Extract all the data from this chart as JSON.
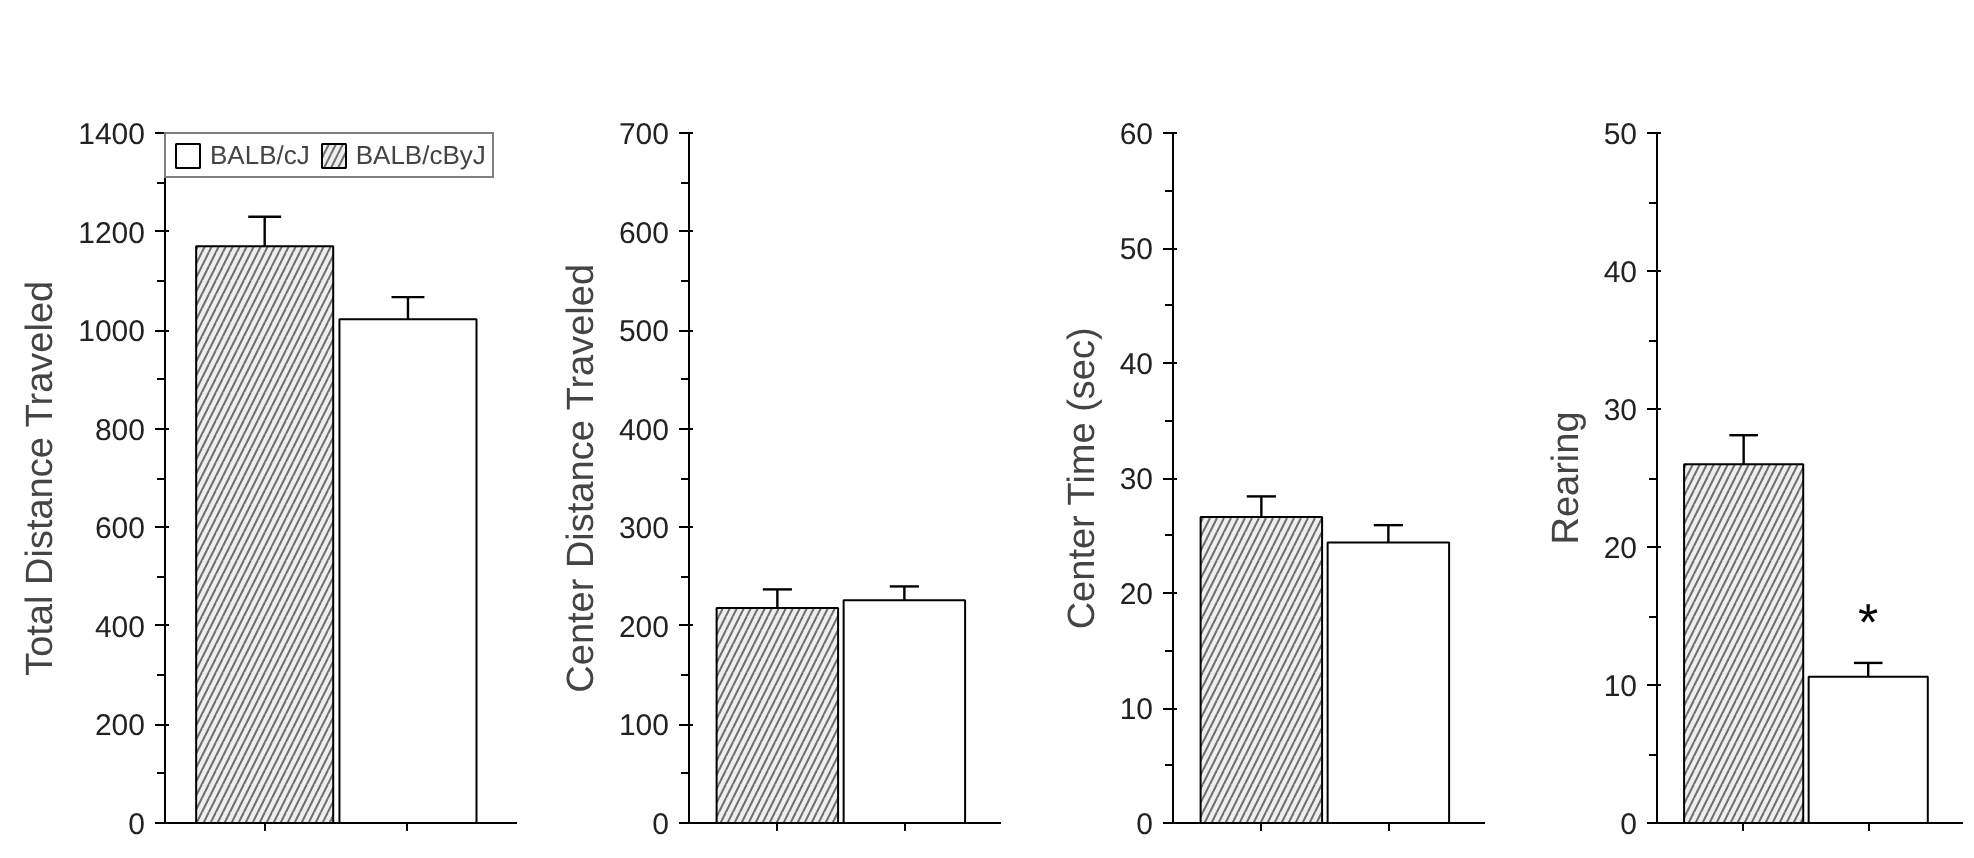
{
  "chart_data": [
    {
      "type": "bar",
      "categories": [
        null
      ],
      "ylabel": "Total Distance Traveled",
      "legend": "top left",
      "series": [
        {
          "name": "BALB/cByJ",
          "color": "#eeeeee",
          "values": [
            1170
          ],
          "errors": [
            60
          ]
        },
        {
          "name": "BALB/cJ",
          "color": "#ffffff",
          "values": [
            1022
          ],
          "errors": [
            45
          ]
        }
      ],
      "ylim": [
        0,
        1400
      ],
      "yticks": [
        0,
        {
          "value": 100,
          "label": null
        },
        200,
        {
          "value": 300,
          "label": null
        },
        400,
        {
          "value": 500,
          "label": null
        },
        600,
        {
          "value": 700,
          "label": null
        },
        800,
        {
          "value": 900,
          "label": null
        },
        1000,
        {
          "value": 1100,
          "label": null
        },
        1200,
        {
          "value": 1300,
          "label": null
        },
        1400
      ]
    },
    {
      "type": "bar",
      "categories": [
        null
      ],
      "ylabel": "Center Distance Traveled",
      "series": [
        {
          "color": "#eeeeee",
          "values": [
            218
          ],
          "errors": [
            19
          ]
        },
        {
          "color": "#ffffff",
          "values": [
            226
          ],
          "errors": [
            14
          ]
        }
      ],
      "ylim": [
        0,
        700
      ],
      "yticks": [
        0,
        {
          "value": 50,
          "label": null
        },
        100,
        {
          "value": 150,
          "label": null
        },
        200,
        {
          "value": 250,
          "label": null
        },
        300,
        {
          "value": 350,
          "label": null
        },
        400,
        {
          "value": 450,
          "label": null
        },
        500,
        {
          "value": 550,
          "label": null
        },
        600,
        {
          "value": 650,
          "label": null
        },
        700
      ]
    },
    {
      "type": "bar",
      "categories": [
        null
      ],
      "ylabel": "Center Time (sec)",
      "series": [
        {
          "color": "#eeeeee",
          "values": [
            26.6
          ],
          "errors": [
            1.8
          ]
        },
        {
          "color": "#ffffff",
          "values": [
            24.4
          ],
          "errors": [
            1.5
          ]
        }
      ],
      "ylim": [
        0,
        60
      ],
      "yticks": [
        0,
        {
          "value": 5,
          "label": null
        },
        10,
        {
          "value": 15,
          "label": null
        },
        20,
        {
          "value": 25,
          "label": null
        },
        30,
        {
          "value": 35,
          "label": null
        },
        40,
        {
          "value": 45,
          "label": null
        },
        50,
        {
          "value": 55,
          "label": null
        },
        60
      ]
    },
    {
      "type": "bar",
      "categories": [
        null
      ],
      "ylabel": "Rearing",
      "series": [
        {
          "color": "#eeeeee",
          "values": [
            26
          ],
          "errors": [
            2.1
          ]
        },
        {
          "color": "#ffffff",
          "values": [
            10.6
          ],
          "errors": [
            1
          ]
        }
      ],
      "annotations": [
        "*"
      ],
      "ylim": [
        0,
        50
      ],
      "yticks": [
        0,
        {
          "value": 5,
          "label": null
        },
        10,
        {
          "value": 15,
          "label": null
        },
        20,
        {
          "value": 25,
          "label": null
        },
        30,
        {
          "value": 35,
          "label": null
        },
        40,
        {
          "value": 45,
          "label": null
        },
        50
      ]
    }
  ]
}
